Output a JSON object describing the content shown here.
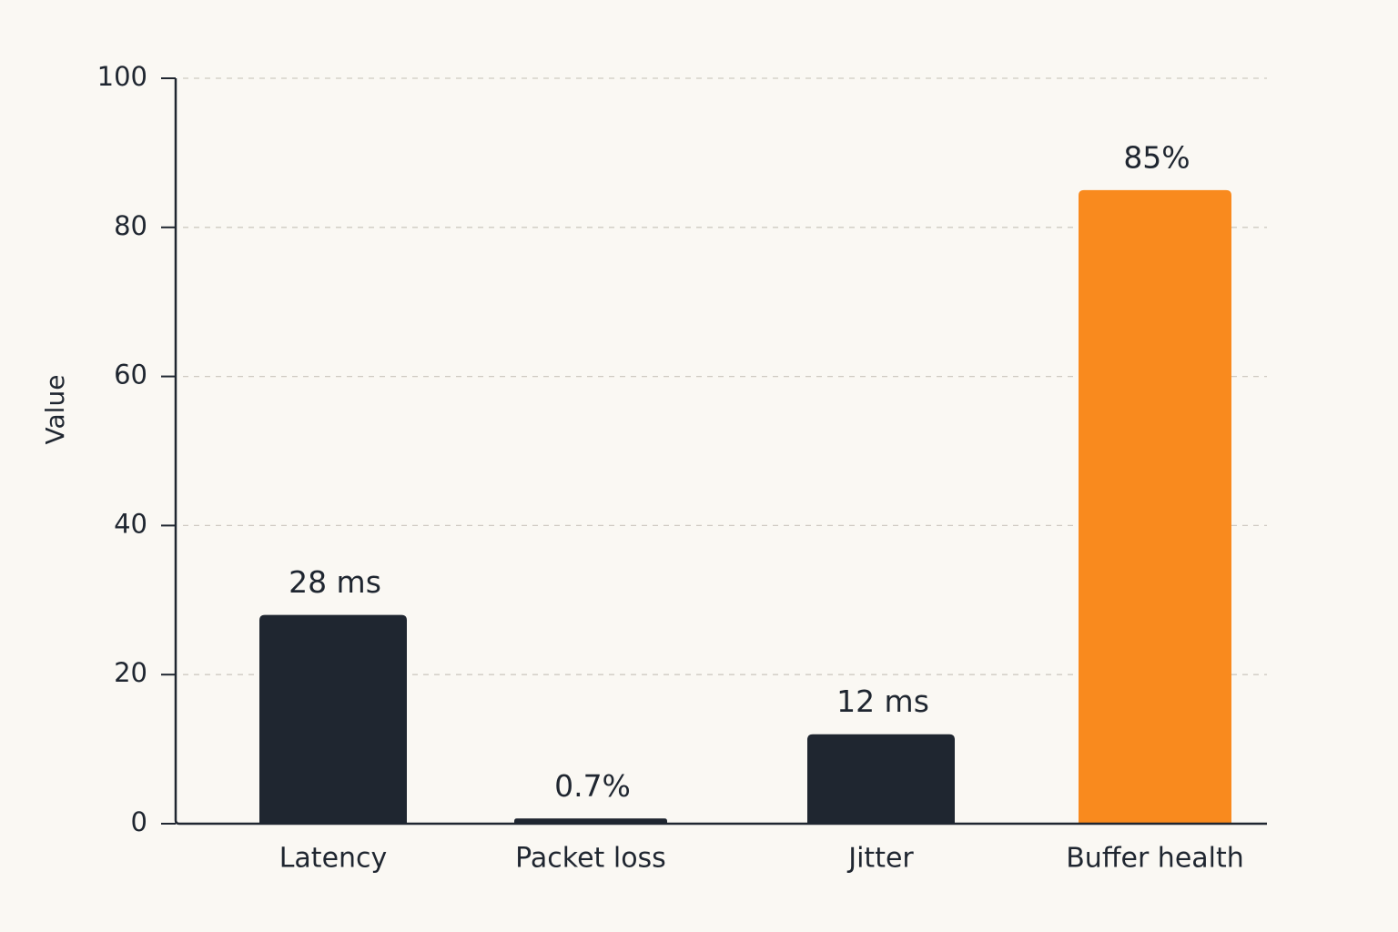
{
  "chart_data": {
    "type": "bar",
    "y_label": "Value",
    "categories": [
      "Latency",
      "Packet loss",
      "Jitter",
      "Buffer health"
    ],
    "values": [
      28,
      0.7,
      12,
      85
    ],
    "value_labels": [
      "28 ms",
      "0.7%",
      "12 ms",
      "85%"
    ],
    "colors": [
      "#1f2630",
      "#1f2630",
      "#1f2630",
      "#f98a1e"
    ],
    "ylim": [
      0,
      100
    ],
    "yticks": [
      0,
      20,
      40,
      60,
      80,
      100
    ],
    "grid": true
  }
}
